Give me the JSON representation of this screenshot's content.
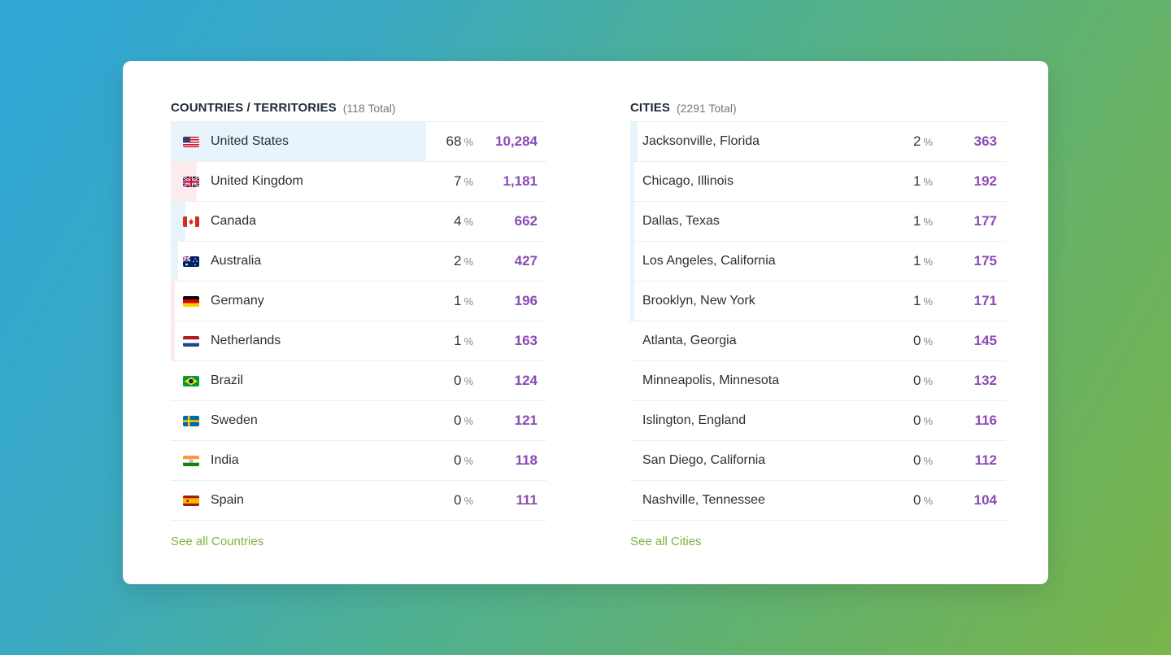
{
  "countries": {
    "title": "COUNTRIES / TERRITORIES",
    "total": "(118 Total)",
    "link": "See all Countries",
    "pct_symbol": "%",
    "rows": [
      {
        "name": "United States",
        "pct": "68",
        "count": "10,284",
        "share": 68,
        "flag": "flag-us-icon",
        "bar_color": "#e8f4fb"
      },
      {
        "name": "United Kingdom",
        "pct": "7",
        "count": "1,181",
        "share": 7,
        "flag": "flag-uk-icon",
        "bar_color": "#fdecee"
      },
      {
        "name": "Canada",
        "pct": "4",
        "count": "662",
        "share": 4,
        "flag": "flag-canada-icon",
        "bar_color": "#e8f4fb"
      },
      {
        "name": "Australia",
        "pct": "2",
        "count": "427",
        "share": 2,
        "flag": "flag-australia-icon",
        "bar_color": "#e8f4fb"
      },
      {
        "name": "Germany",
        "pct": "1",
        "count": "196",
        "share": 1,
        "flag": "flag-germany-icon",
        "bar_color": "#fdecee"
      },
      {
        "name": "Netherlands",
        "pct": "1",
        "count": "163",
        "share": 1,
        "flag": "flag-netherlands-icon",
        "bar_color": "#fdecee"
      },
      {
        "name": "Brazil",
        "pct": "0",
        "count": "124",
        "share": 0,
        "flag": "flag-brazil-icon",
        "bar_color": "#e8f4fb"
      },
      {
        "name": "Sweden",
        "pct": "0",
        "count": "121",
        "share": 0,
        "flag": "flag-sweden-icon",
        "bar_color": "#e8f4fb"
      },
      {
        "name": "India",
        "pct": "0",
        "count": "118",
        "share": 0,
        "flag": "flag-india-icon",
        "bar_color": "#e8f4fb"
      },
      {
        "name": "Spain",
        "pct": "0",
        "count": "111",
        "share": 0,
        "flag": "flag-spain-icon",
        "bar_color": "#e8f4fb"
      }
    ]
  },
  "cities": {
    "title": "CITIES",
    "total": "(2291 Total)",
    "link": "See all Cities",
    "pct_symbol": "%",
    "rows": [
      {
        "name": "Jacksonville, Florida",
        "pct": "2",
        "count": "363",
        "share": 2,
        "bar_color": "#e8f4fb"
      },
      {
        "name": "Chicago, Illinois",
        "pct": "1",
        "count": "192",
        "share": 1,
        "bar_color": "#e8f4fb"
      },
      {
        "name": "Dallas, Texas",
        "pct": "1",
        "count": "177",
        "share": 1,
        "bar_color": "#e8f4fb"
      },
      {
        "name": "Los Angeles, California",
        "pct": "1",
        "count": "175",
        "share": 1,
        "bar_color": "#e8f4fb"
      },
      {
        "name": "Brooklyn, New York",
        "pct": "1",
        "count": "171",
        "share": 1,
        "bar_color": "#e8f4fb"
      },
      {
        "name": "Atlanta, Georgia",
        "pct": "0",
        "count": "145",
        "share": 0,
        "bar_color": "#e8f4fb"
      },
      {
        "name": "Minneapolis, Minnesota",
        "pct": "0",
        "count": "132",
        "share": 0,
        "bar_color": "#e8f4fb"
      },
      {
        "name": "Islington, England",
        "pct": "0",
        "count": "116",
        "share": 0,
        "bar_color": "#e8f4fb"
      },
      {
        "name": "San Diego, California",
        "pct": "0",
        "count": "112",
        "share": 0,
        "bar_color": "#e8f4fb"
      },
      {
        "name": "Nashville, Tennessee",
        "pct": "0",
        "count": "104",
        "share": 0,
        "bar_color": "#e8f4fb"
      }
    ]
  },
  "colors": {
    "accent_purple": "#8a4bb5",
    "link_green": "#7cb342",
    "bar_blue": "#e8f4fb",
    "bar_pink": "#fdecee"
  }
}
